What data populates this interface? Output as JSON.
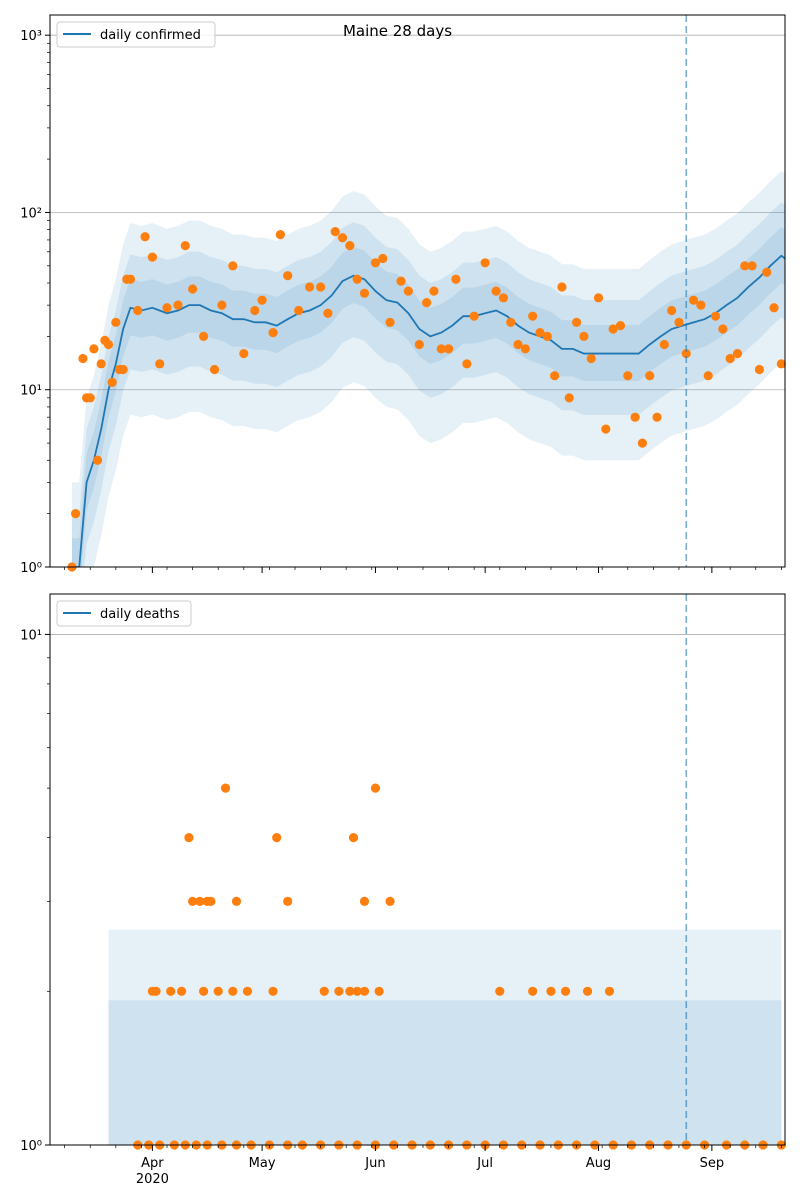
{
  "chart_data": [
    {
      "type": "line",
      "title": "Maine 28 days",
      "yscale": "log",
      "ylim": [
        1,
        1300
      ],
      "yticks": [
        1,
        10,
        100,
        1000
      ],
      "ytick_labels": [
        "10⁰",
        "10¹",
        "10²",
        "10³"
      ],
      "xlim": [
        "2020-03-04",
        "2020-09-21"
      ],
      "xtick_labels": [
        "Apr",
        "May",
        "Jun",
        "Jul",
        "Aug",
        "Sep"
      ],
      "year_label": "2020",
      "grid": "horizontal",
      "legend": {
        "position": "top-left",
        "label": "daily confirmed"
      },
      "vline": "2020-08-25",
      "colors": {
        "line": "#1f77b4",
        "points": "#ff7f0e",
        "band": "#1f77b4"
      },
      "series": [
        {
          "name": "daily confirmed",
          "style": "line",
          "x": [
            "2020-03-10",
            "2020-03-12",
            "2020-03-14",
            "2020-03-16",
            "2020-03-18",
            "2020-03-20",
            "2020-03-22",
            "2020-03-24",
            "2020-03-26",
            "2020-03-29",
            "2020-04-01",
            "2020-04-05",
            "2020-04-08",
            "2020-04-11",
            "2020-04-14",
            "2020-04-17",
            "2020-04-20",
            "2020-04-23",
            "2020-04-26",
            "2020-04-29",
            "2020-05-02",
            "2020-05-05",
            "2020-05-08",
            "2020-05-11",
            "2020-05-14",
            "2020-05-17",
            "2020-05-20",
            "2020-05-23",
            "2020-05-26",
            "2020-05-29",
            "2020-06-01",
            "2020-06-04",
            "2020-06-07",
            "2020-06-10",
            "2020-06-13",
            "2020-06-16",
            "2020-06-19",
            "2020-06-22",
            "2020-06-25",
            "2020-06-28",
            "2020-07-01",
            "2020-07-04",
            "2020-07-07",
            "2020-07-10",
            "2020-07-13",
            "2020-07-16",
            "2020-07-19",
            "2020-07-22",
            "2020-07-25",
            "2020-07-28",
            "2020-07-31",
            "2020-08-03",
            "2020-08-06",
            "2020-08-09",
            "2020-08-12",
            "2020-08-15",
            "2020-08-18",
            "2020-08-21",
            "2020-08-24",
            "2020-08-27",
            "2020-08-30",
            "2020-09-02",
            "2020-09-05",
            "2020-09-08",
            "2020-09-11",
            "2020-09-14",
            "2020-09-17",
            "2020-09-20",
            "2020-09-21"
          ],
          "y": [
            1,
            1,
            3,
            4,
            6,
            10,
            14,
            22,
            29,
            28,
            29,
            27,
            28,
            30,
            30,
            28,
            27,
            25,
            25,
            24,
            24,
            23,
            25,
            27,
            28,
            30,
            34,
            41,
            44,
            42,
            36,
            32,
            31,
            27,
            22,
            20,
            21,
            23,
            26,
            26,
            27,
            28,
            26,
            23,
            21,
            20,
            19,
            17,
            17,
            16,
            16,
            16,
            16,
            16,
            16,
            18,
            20,
            22,
            23,
            24,
            25,
            27,
            30,
            33,
            38,
            43,
            50,
            57,
            55
          ]
        },
        {
          "name": "",
          "style": "markers",
          "x": [
            "2020-03-10",
            "2020-03-11",
            "2020-03-13",
            "2020-03-14",
            "2020-03-15",
            "2020-03-16",
            "2020-03-17",
            "2020-03-18",
            "2020-03-19",
            "2020-03-20",
            "2020-03-21",
            "2020-03-22",
            "2020-03-23",
            "2020-03-24",
            "2020-03-25",
            "2020-03-26",
            "2020-03-28",
            "2020-03-30",
            "2020-04-01",
            "2020-04-03",
            "2020-04-05",
            "2020-04-08",
            "2020-04-10",
            "2020-04-12",
            "2020-04-15",
            "2020-04-18",
            "2020-04-20",
            "2020-04-23",
            "2020-04-26",
            "2020-04-29",
            "2020-05-01",
            "2020-05-04",
            "2020-05-06",
            "2020-05-08",
            "2020-05-11",
            "2020-05-14",
            "2020-05-17",
            "2020-05-19",
            "2020-05-21",
            "2020-05-23",
            "2020-05-25",
            "2020-05-27",
            "2020-05-29",
            "2020-06-01",
            "2020-06-03",
            "2020-06-05",
            "2020-06-08",
            "2020-06-10",
            "2020-06-13",
            "2020-06-15",
            "2020-06-17",
            "2020-06-19",
            "2020-06-21",
            "2020-06-23",
            "2020-06-26",
            "2020-06-28",
            "2020-07-01",
            "2020-07-04",
            "2020-07-06",
            "2020-07-08",
            "2020-07-10",
            "2020-07-12",
            "2020-07-14",
            "2020-07-16",
            "2020-07-18",
            "2020-07-20",
            "2020-07-22",
            "2020-07-24",
            "2020-07-26",
            "2020-07-28",
            "2020-07-30",
            "2020-08-01",
            "2020-08-03",
            "2020-08-05",
            "2020-08-07",
            "2020-08-09",
            "2020-08-11",
            "2020-08-13",
            "2020-08-15",
            "2020-08-17",
            "2020-08-19",
            "2020-08-21",
            "2020-08-23",
            "2020-08-25",
            "2020-08-27",
            "2020-08-29",
            "2020-08-31",
            "2020-09-02",
            "2020-09-04",
            "2020-09-06",
            "2020-09-08",
            "2020-09-10",
            "2020-09-12",
            "2020-09-14",
            "2020-09-16",
            "2020-09-18",
            "2020-09-20"
          ],
          "y": [
            1,
            2,
            15,
            9,
            9,
            17,
            4,
            14,
            19,
            18,
            11,
            24,
            13,
            13,
            42,
            42,
            28,
            73,
            56,
            14,
            29,
            30,
            65,
            37,
            20,
            13,
            30,
            50,
            16,
            28,
            32,
            21,
            75,
            44,
            28,
            38,
            38,
            27,
            78,
            72,
            65,
            42,
            35,
            52,
            55,
            24,
            41,
            36,
            18,
            31,
            36,
            17,
            17,
            42,
            14,
            26,
            52,
            36,
            33,
            24,
            18,
            17,
            26,
            21,
            20,
            12,
            38,
            9,
            24,
            20,
            15,
            33,
            6,
            22,
            23,
            12,
            7,
            5,
            12,
            7,
            18,
            28,
            24,
            16,
            32,
            30,
            12,
            26,
            22,
            15,
            16,
            50,
            50,
            13,
            46,
            29,
            14
          ]
        }
      ]
    },
    {
      "type": "line",
      "title": "",
      "yscale": "log",
      "ylim": [
        1,
        12
      ],
      "yticks": [
        1,
        10
      ],
      "ytick_labels": [
        "10⁰",
        "10¹"
      ],
      "xlim": [
        "2020-03-04",
        "2020-09-21"
      ],
      "xtick_labels": [
        "Apr",
        "May",
        "Jun",
        "Jul",
        "Aug",
        "Sep"
      ],
      "year_label": "2020",
      "grid": "horizontal",
      "legend": {
        "position": "top-left",
        "label": "daily deaths"
      },
      "vline": "2020-08-25",
      "colors": {
        "line": "#1f77b4",
        "points": "#ff7f0e",
        "band": "#1f77b4"
      },
      "series": [
        {
          "name": "daily deaths",
          "style": "line",
          "x": [],
          "y": []
        },
        {
          "name": "",
          "style": "markers",
          "x": [
            "2020-03-28",
            "2020-03-31",
            "2020-04-03",
            "2020-04-07",
            "2020-04-10",
            "2020-04-13",
            "2020-04-16",
            "2020-04-20",
            "2020-04-24",
            "2020-04-28",
            "2020-05-03",
            "2020-05-08",
            "2020-05-12",
            "2020-05-17",
            "2020-05-22",
            "2020-05-27",
            "2020-06-01",
            "2020-06-06",
            "2020-06-11",
            "2020-06-16",
            "2020-06-21",
            "2020-06-26",
            "2020-07-01",
            "2020-07-06",
            "2020-07-11",
            "2020-07-16",
            "2020-07-21",
            "2020-07-26",
            "2020-07-31",
            "2020-08-05",
            "2020-08-10",
            "2020-08-15",
            "2020-08-20",
            "2020-08-25",
            "2020-08-30",
            "2020-09-05",
            "2020-09-10",
            "2020-09-15",
            "2020-09-20",
            "2020-04-01",
            "2020-04-02",
            "2020-04-06",
            "2020-04-09",
            "2020-04-15",
            "2020-04-19",
            "2020-04-23",
            "2020-04-27",
            "2020-05-04",
            "2020-05-18",
            "2020-05-22",
            "2020-05-25",
            "2020-05-27",
            "2020-05-29",
            "2020-06-02",
            "2020-07-05",
            "2020-07-14",
            "2020-07-19",
            "2020-07-23",
            "2020-07-29",
            "2020-08-04",
            "2020-04-12",
            "2020-04-14",
            "2020-04-16",
            "2020-04-17",
            "2020-04-24",
            "2020-05-08",
            "2020-05-29",
            "2020-06-05",
            "2020-04-11",
            "2020-05-05",
            "2020-05-26",
            "2020-04-21",
            "2020-06-01"
          ],
          "y": [
            1,
            1,
            1,
            1,
            1,
            1,
            1,
            1,
            1,
            1,
            1,
            1,
            1,
            1,
            1,
            1,
            1,
            1,
            1,
            1,
            1,
            1,
            1,
            1,
            1,
            1,
            1,
            1,
            1,
            1,
            1,
            1,
            1,
            1,
            1,
            1,
            1,
            1,
            1,
            2,
            2,
            2,
            2,
            2,
            2,
            2,
            2,
            2,
            2,
            2,
            2,
            2,
            2,
            2,
            2,
            2,
            2,
            2,
            2,
            2,
            3,
            3,
            3,
            3,
            3,
            3,
            3,
            3,
            4,
            4,
            4,
            5,
            5
          ]
        }
      ]
    }
  ]
}
